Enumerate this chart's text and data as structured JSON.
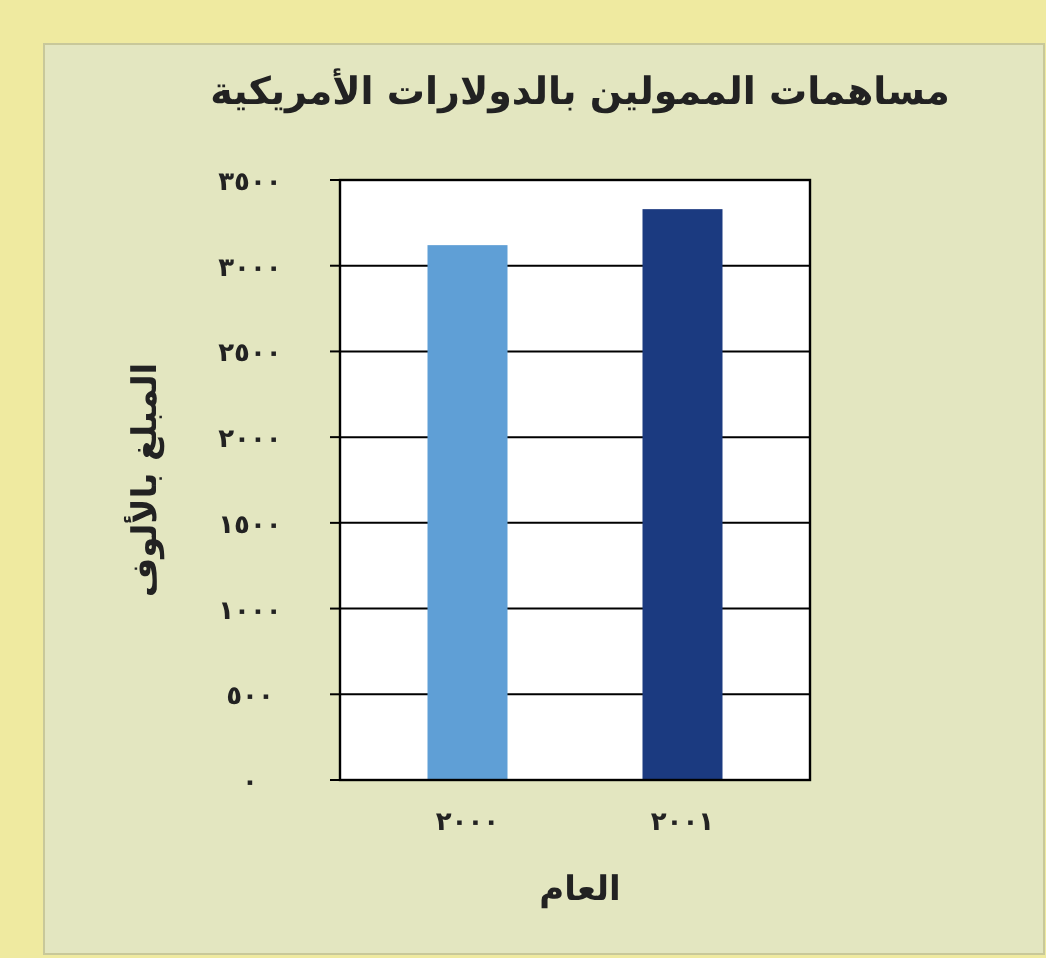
{
  "chart_data": {
    "type": "bar",
    "title": "مساهمات الممولين بالدولارات الأمريكية",
    "xlabel": "العام",
    "ylabel": "المبلغ بالألوف",
    "categories": [
      "٢٠٠٠",
      "٢٠٠١"
    ],
    "series": [
      {
        "values": [
          3120,
          3330
        ],
        "colors": [
          "#5f9fd6",
          "#1b3a80"
        ]
      }
    ],
    "ylim": [
      0,
      3500
    ],
    "yticks": [
      {
        "value": 0,
        "label": "٠"
      },
      {
        "value": 500,
        "label": "٥٠٠"
      },
      {
        "value": 1000,
        "label": "١٠٠٠"
      },
      {
        "value": 1500,
        "label": "١٥٠٠"
      },
      {
        "value": 2000,
        "label": "٢٠٠٠"
      },
      {
        "value": 2500,
        "label": "٢٥٠٠"
      },
      {
        "value": 3000,
        "label": "٣٠٠٠"
      },
      {
        "value": 3500,
        "label": "٣٥٠٠"
      }
    ],
    "grid": "y"
  }
}
